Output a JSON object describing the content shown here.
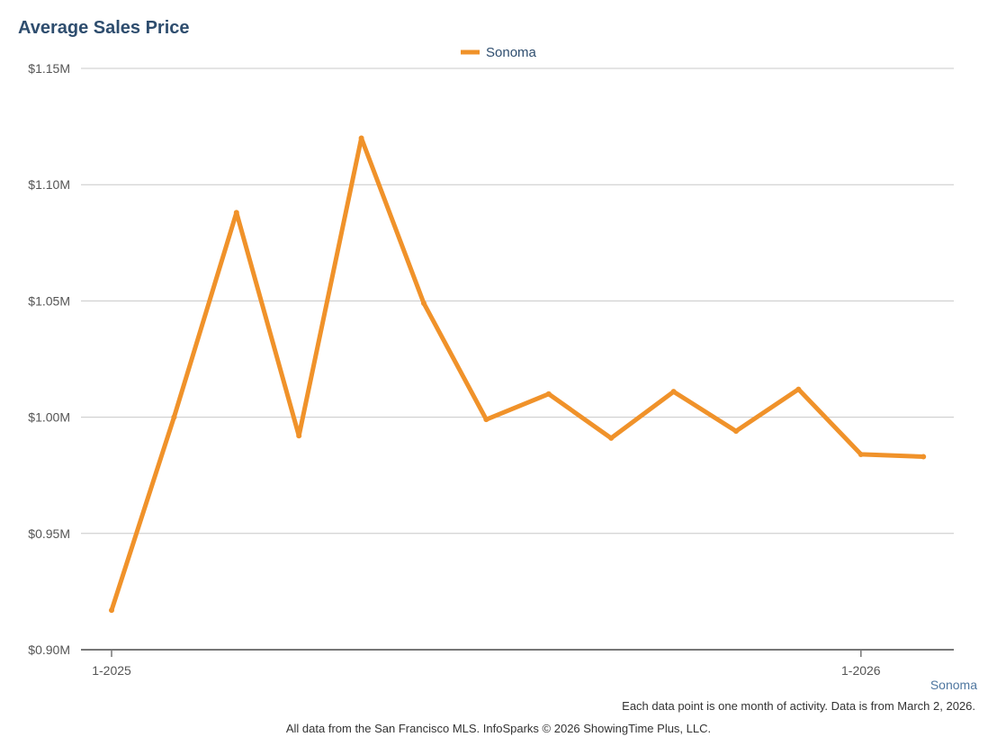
{
  "chart_data": {
    "type": "line",
    "title": "Average Sales Price",
    "legend": {
      "position": "top-center"
    },
    "series": [
      {
        "name": "Sonoma",
        "color": "#f0922a",
        "values": [
          0.917,
          1.0,
          1.088,
          0.992,
          1.12,
          1.049,
          0.999,
          1.01,
          0.991,
          1.011,
          0.994,
          1.012,
          0.984,
          0.983
        ]
      }
    ],
    "x_count": 14,
    "x_ticks": [
      {
        "index": 0,
        "label": "1-2025"
      },
      {
        "index": 12,
        "label": "1-2026"
      }
    ],
    "ylim": [
      0.9,
      1.15
    ],
    "y_ticks": [
      {
        "value": 1.15,
        "label": "$1.15M"
      },
      {
        "value": 1.1,
        "label": "$1.10M"
      },
      {
        "value": 1.05,
        "label": "$1.05M"
      },
      {
        "value": 1.0,
        "label": "$1.00M"
      },
      {
        "value": 0.95,
        "label": "$0.95M"
      },
      {
        "value": 0.9,
        "label": "$0.90M"
      }
    ],
    "grid": true
  },
  "footer": {
    "series_label": "Sonoma",
    "note": "Each data point is one month of activity. Data is from March 2, 2026.",
    "credit": "All data from the San Francisco MLS. InfoSparks © 2026 ShowingTime Plus, LLC."
  },
  "colors": {
    "title": "#2e4d6e",
    "grid": "#c8c8c8",
    "axis": "#777777"
  }
}
